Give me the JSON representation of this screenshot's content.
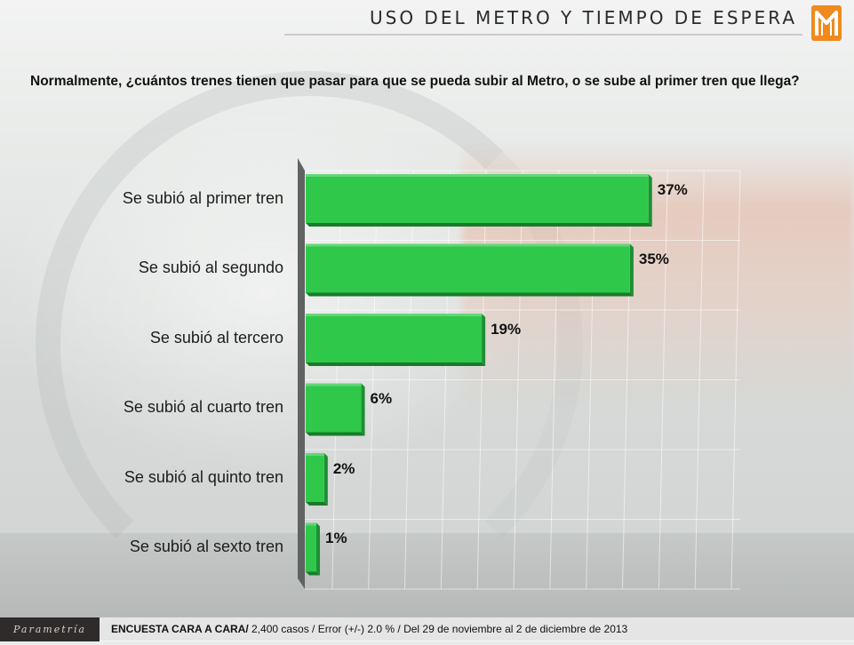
{
  "header": {
    "title": "USO DEL METRO Y TIEMPO DE ESPERA"
  },
  "question": "Normalmente, ¿cuántos trenes tienen que pasar para que se pueda subir al Metro, o se sube al primer tren que llega?",
  "chart_data": {
    "type": "bar",
    "orientation": "horizontal",
    "title": "",
    "xlabel": "",
    "ylabel": "",
    "categories": [
      "Se subió al primer tren",
      "Se subió al segundo",
      "Se subió al tercero",
      "Se subió al cuarto tren",
      "Se subió al quinto tren",
      "Se subió al sexto tren"
    ],
    "values": [
      37,
      35,
      19,
      6,
      2,
      1
    ],
    "value_labels": [
      "37%",
      "35%",
      "19%",
      "6%",
      "2%",
      "1%"
    ],
    "xlim": [
      0,
      47
    ],
    "grid": true,
    "bar_color": "#2fc84a"
  },
  "footer": {
    "brand": "Parametría",
    "survey_bold": "ENCUESTA CARA A CARA/",
    "survey_rest": " 2,400 casos / Error (+/-) 2.0 % / Del 29 de noviembre al 2 de diciembre de 2013"
  }
}
